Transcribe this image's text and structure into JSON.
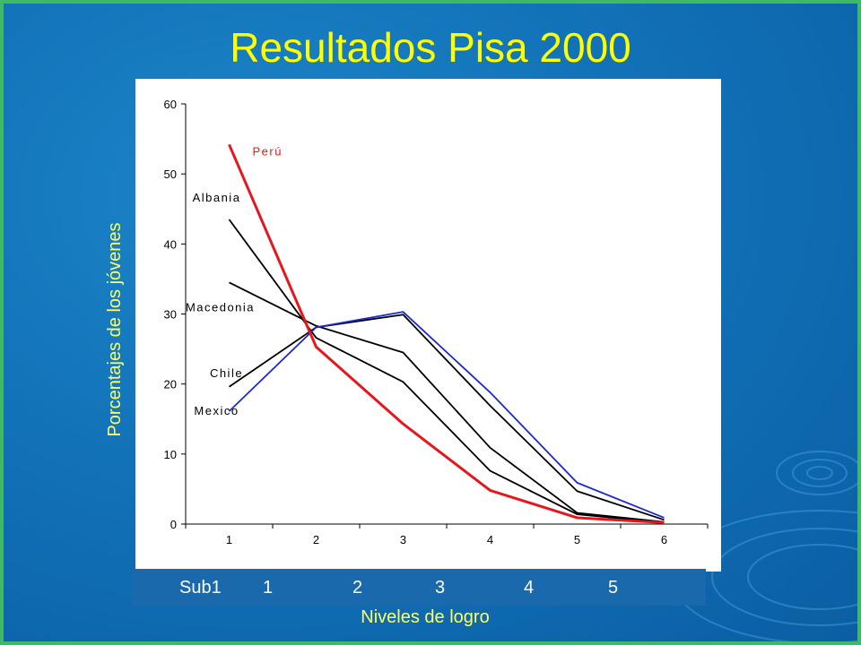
{
  "slide": {
    "title": "Resultados Pisa 2000",
    "xlabel": "Niveles de logro",
    "ylabel": "Porcentajes de los jóvenes",
    "legend_bar": [
      "Sub1",
      "1",
      "2",
      "3",
      "4",
      "5"
    ]
  },
  "colors": {
    "peru": "#e8161c",
    "mexico": "#1b2bcc",
    "other": "#000000",
    "title": "#ffff00"
  },
  "chart_data": {
    "type": "line",
    "x": [
      1,
      2,
      3,
      4,
      5,
      6
    ],
    "ylim": [
      0,
      60
    ],
    "yticks": [
      0,
      10,
      20,
      30,
      40,
      50,
      60
    ],
    "grid": false,
    "series": [
      {
        "name": "Perú",
        "values": [
          54.2,
          25.3,
          14.3,
          4.8,
          0.9,
          0.2
        ]
      },
      {
        "name": "Albania",
        "values": [
          43.5,
          26.6,
          20.3,
          7.6,
          1.4,
          0.2
        ]
      },
      {
        "name": "Macedonia",
        "values": [
          34.5,
          28.3,
          24.5,
          10.9,
          1.6,
          0.3
        ]
      },
      {
        "name": "Chile",
        "values": [
          19.6,
          28.1,
          29.9,
          16.9,
          4.7,
          0.6
        ]
      },
      {
        "name": "Mexico",
        "values": [
          16.1,
          28.1,
          30.3,
          18.8,
          5.9,
          0.9
        ]
      }
    ]
  }
}
